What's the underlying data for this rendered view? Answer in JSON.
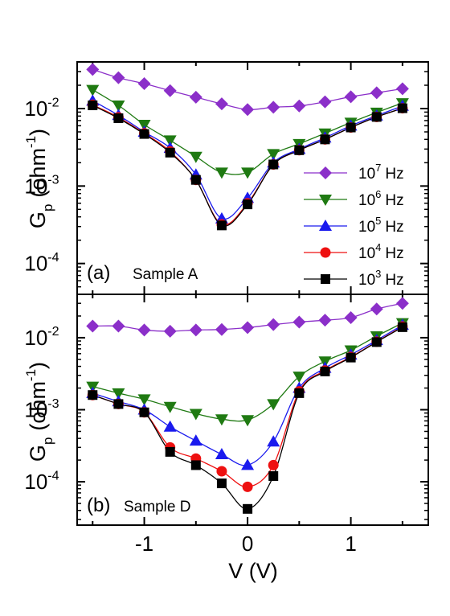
{
  "chart_data": [
    {
      "type": "scatter",
      "panel_label": "(a)",
      "sample_label": "Sample A",
      "xlabel": "V (V)",
      "ylabel_main": "G",
      "ylabel_sub": "p",
      "ylabel_unit": "(ohm",
      "ylabel_unit_sup": "-1",
      "ylabel_close": ")",
      "xlim": [
        -1.65,
        1.75
      ],
      "ylim": [
        4e-05,
        0.04
      ],
      "yscale": "log",
      "yticks": [
        {
          "value": 0.0001,
          "base": "10",
          "exp": "-4"
        },
        {
          "value": 0.001,
          "base": "10",
          "exp": "-3"
        },
        {
          "value": 0.01,
          "base": "10",
          "exp": "-2"
        }
      ],
      "legend_position": "right",
      "series": [
        {
          "name_base": "10",
          "name_exp": "7",
          "name_unit": "Hz",
          "marker": "diamond",
          "color": "#8b2fc9",
          "x": [
            -1.5,
            -1.25,
            -1.0,
            -0.75,
            -0.5,
            -0.25,
            0.0,
            0.25,
            0.5,
            0.75,
            1.0,
            1.25,
            1.5
          ],
          "y": [
            0.032,
            0.025,
            0.021,
            0.017,
            0.014,
            0.0115,
            0.0097,
            0.0104,
            0.0108,
            0.0122,
            0.0142,
            0.016,
            0.018
          ]
        },
        {
          "name_base": "10",
          "name_exp": "6",
          "name_unit": "Hz",
          "marker": "triangle-down",
          "color": "#1f7a12",
          "x": [
            -1.5,
            -1.25,
            -1.0,
            -0.75,
            -0.5,
            -0.25,
            0.0,
            0.25,
            0.5,
            0.75,
            1.0,
            1.25,
            1.5
          ],
          "y": [
            0.0175,
            0.011,
            0.0062,
            0.0039,
            0.0024,
            0.0015,
            0.0015,
            0.0026,
            0.0035,
            0.0048,
            0.0066,
            0.0089,
            0.0118
          ]
        },
        {
          "name_base": "10",
          "name_exp": "5",
          "name_unit": "Hz",
          "marker": "triangle-up",
          "color": "#1a1aee",
          "x": [
            -1.5,
            -1.25,
            -1.0,
            -0.75,
            -0.5,
            -0.25,
            0.0,
            0.25,
            0.5,
            0.75,
            1.0,
            1.25,
            1.5
          ],
          "y": [
            0.0126,
            0.0082,
            0.005,
            0.0031,
            0.0014,
            0.00038,
            0.0007,
            0.002,
            0.003,
            0.0042,
            0.006,
            0.0081,
            0.0108
          ]
        },
        {
          "name_base": "10",
          "name_exp": "4",
          "name_unit": "Hz",
          "marker": "circle",
          "color": "#ee1010",
          "x": [
            -1.5,
            -1.25,
            -1.0,
            -0.75,
            -0.5,
            -0.25,
            0.0,
            0.25,
            0.5,
            0.75,
            1.0,
            1.25,
            1.5
          ],
          "y": [
            0.0112,
            0.0077,
            0.0048,
            0.0028,
            0.0012,
            0.00032,
            0.0006,
            0.0019,
            0.0029,
            0.004,
            0.0057,
            0.0078,
            0.0101
          ]
        },
        {
          "name_base": "10",
          "name_exp": "3",
          "name_unit": "Hz",
          "marker": "square",
          "color": "#000000",
          "x": [
            -1.5,
            -1.25,
            -1.0,
            -0.75,
            -0.5,
            -0.25,
            0.0,
            0.25,
            0.5,
            0.75,
            1.0,
            1.25,
            1.5
          ],
          "y": [
            0.011,
            0.0075,
            0.0047,
            0.0027,
            0.0012,
            0.00031,
            0.00058,
            0.0019,
            0.0029,
            0.004,
            0.0057,
            0.0078,
            0.0101
          ]
        }
      ]
    },
    {
      "type": "scatter",
      "panel_label": "(b)",
      "sample_label": "Sample D",
      "xlabel": "V (V)",
      "ylabel_main": "G",
      "ylabel_sub": "p",
      "ylabel_unit": "(ohm",
      "ylabel_unit_sup": "-1",
      "ylabel_close": ")",
      "xlim": [
        -1.65,
        1.75
      ],
      "ylim": [
        2.5e-05,
        0.04
      ],
      "yscale": "log",
      "yticks": [
        {
          "value": 0.0001,
          "base": "10",
          "exp": "-4"
        },
        {
          "value": 0.001,
          "base": "10",
          "exp": "-3"
        },
        {
          "value": 0.01,
          "base": "10",
          "exp": "-2"
        }
      ],
      "xticks": [
        {
          "value": -1,
          "label": "-1"
        },
        {
          "value": 0,
          "label": "0"
        },
        {
          "value": 1,
          "label": "1"
        }
      ],
      "series": [
        {
          "name_base": "10",
          "name_exp": "7",
          "name_unit": "Hz",
          "marker": "diamond",
          "color": "#8b2fc9",
          "x": [
            -1.5,
            -1.25,
            -1.0,
            -0.75,
            -0.5,
            -0.25,
            0.0,
            0.25,
            0.5,
            0.75,
            1.0,
            1.25,
            1.5
          ],
          "y": [
            0.0145,
            0.0145,
            0.0128,
            0.0123,
            0.0128,
            0.013,
            0.0138,
            0.0152,
            0.0165,
            0.0175,
            0.019,
            0.025,
            0.03
          ]
        },
        {
          "name_base": "10",
          "name_exp": "6",
          "name_unit": "Hz",
          "marker": "triangle-down",
          "color": "#1f7a12",
          "x": [
            -1.5,
            -1.25,
            -1.0,
            -0.75,
            -0.5,
            -0.25,
            0.0,
            0.25,
            0.5,
            0.75,
            1.0,
            1.25,
            1.5
          ],
          "y": [
            0.0021,
            0.0017,
            0.0014,
            0.0011,
            0.00088,
            0.00074,
            0.00072,
            0.0012,
            0.0029,
            0.0047,
            0.0067,
            0.0105,
            0.016
          ]
        },
        {
          "name_base": "10",
          "name_exp": "5",
          "name_unit": "Hz",
          "marker": "triangle-up",
          "color": "#1a1aee",
          "x": [
            -1.5,
            -1.25,
            -1.0,
            -0.75,
            -0.5,
            -0.25,
            0.0,
            0.25,
            0.5,
            0.75,
            1.0,
            1.25,
            1.5
          ],
          "y": [
            0.0017,
            0.0013,
            0.001,
            0.00058,
            0.00037,
            0.00024,
            0.00017,
            0.00036,
            0.002,
            0.0038,
            0.0058,
            0.0092,
            0.015
          ]
        },
        {
          "name_base": "10",
          "name_exp": "4",
          "name_unit": "Hz",
          "marker": "circle",
          "color": "#ee1010",
          "x": [
            -1.5,
            -1.25,
            -1.0,
            -0.75,
            -0.5,
            -0.25,
            0.0,
            0.25,
            0.5,
            0.75,
            1.0,
            1.25,
            1.5
          ],
          "y": [
            0.0016,
            0.0012,
            0.00092,
            0.0003,
            0.00021,
            0.00014,
            8.5e-05,
            0.00017,
            0.0018,
            0.0035,
            0.0054,
            0.0088,
            0.0143
          ]
        },
        {
          "name_base": "10",
          "name_exp": "3",
          "name_unit": "Hz",
          "marker": "square",
          "color": "#000000",
          "x": [
            -1.5,
            -1.25,
            -1.0,
            -0.75,
            -0.5,
            -0.25,
            0.0,
            0.25,
            0.5,
            0.75,
            1.0,
            1.25,
            1.5
          ],
          "y": [
            0.0016,
            0.0012,
            0.00092,
            0.00026,
            0.00017,
            9.5e-05,
            4.2e-05,
            0.00012,
            0.0017,
            0.0034,
            0.0053,
            0.0087,
            0.014
          ]
        }
      ]
    }
  ]
}
